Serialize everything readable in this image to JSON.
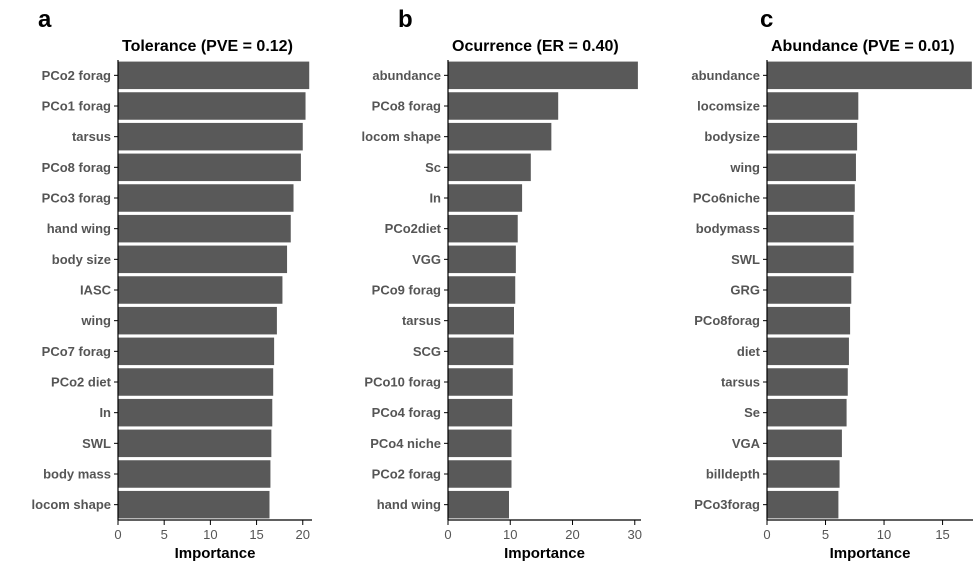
{
  "colors": {
    "bar": "#595959",
    "axis": "#000000",
    "text": "#555555"
  },
  "chart_data": [
    {
      "type": "bar",
      "orientation": "horizontal",
      "panel_letter": "a",
      "title": "Tolerance (PVE = 0.12)",
      "xlabel": "Importance",
      "ylabel": "",
      "xlim": [
        0,
        21
      ],
      "xticks": [
        0,
        5,
        10,
        15,
        20
      ],
      "grid": false,
      "categories": [
        "PCo2 forag",
        "PCo1 forag",
        "tarsus",
        "PCo8 forag",
        "PCo3 forag",
        "hand wing",
        "body size",
        "IASC",
        "wing",
        "PCo7 forag",
        "PCo2 diet",
        "In",
        "SWL",
        "body mass",
        "locom shape"
      ],
      "values": [
        20.7,
        20.3,
        20.0,
        19.8,
        19.0,
        18.7,
        18.3,
        17.8,
        17.2,
        16.9,
        16.8,
        16.7,
        16.6,
        16.5,
        16.4
      ]
    },
    {
      "type": "bar",
      "orientation": "horizontal",
      "panel_letter": "b",
      "title": "Ocurrence (ER = 0.40)",
      "xlabel": "Importance",
      "ylabel": "",
      "xlim": [
        0,
        31
      ],
      "xticks": [
        0,
        10,
        20,
        30
      ],
      "grid": false,
      "categories": [
        "abundance",
        "PCo8 forag",
        "locom shape",
        "Sc",
        "In",
        "PCo2diet",
        "VGG",
        "PCo9 forag",
        "tarsus",
        "SCG",
        "PCo10 forag",
        "PCo4 forag",
        "PCo4 niche",
        "PCo2 forag",
        "hand wing"
      ],
      "values": [
        30.5,
        17.7,
        16.6,
        13.3,
        11.9,
        11.2,
        10.9,
        10.8,
        10.6,
        10.5,
        10.4,
        10.3,
        10.2,
        10.2,
        9.8
      ]
    },
    {
      "type": "bar",
      "orientation": "horizontal",
      "panel_letter": "c",
      "title": "Abundance (PVE = 0.01)",
      "xlabel": "Importance",
      "ylabel": "",
      "xlim": [
        0,
        17.6
      ],
      "xticks": [
        0,
        5,
        10,
        15
      ],
      "grid": false,
      "categories": [
        "abundance",
        "locomsize",
        "bodysize",
        "wing",
        "PCo6niche",
        "bodymass",
        "SWL",
        "GRG",
        "PCo8forag",
        "diet",
        "tarsus",
        "Se",
        "VGA",
        "billdepth",
        "PCo3forag"
      ],
      "values": [
        17.5,
        7.8,
        7.7,
        7.6,
        7.5,
        7.4,
        7.4,
        7.2,
        7.1,
        7.0,
        6.9,
        6.8,
        6.4,
        6.2,
        6.1
      ]
    }
  ]
}
